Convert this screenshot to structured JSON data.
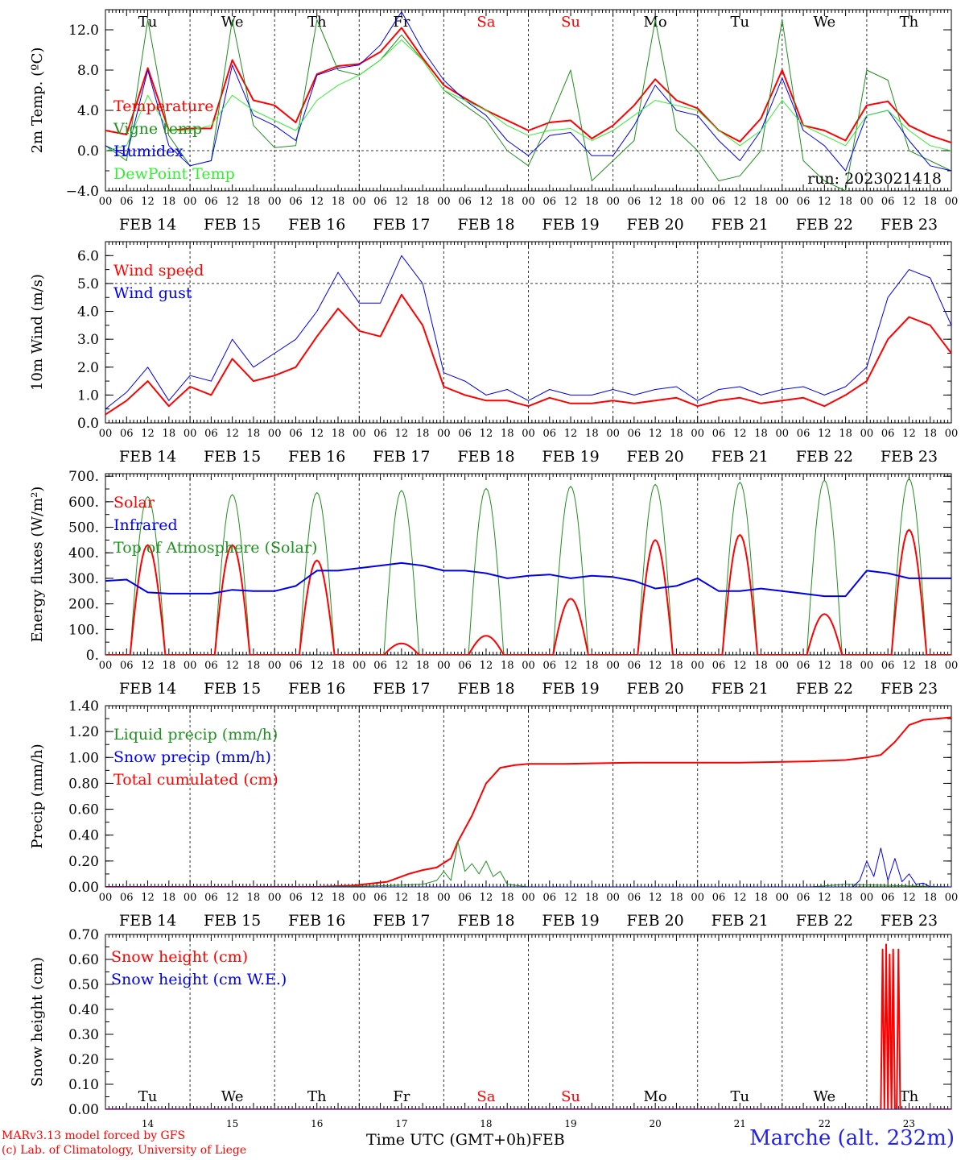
{
  "meta": {
    "run_label": "run: 2023021418",
    "credit_line1": "MARv3.13 model forced by GFS",
    "credit_line2": "(c) Lab. of Climatology, University of Liege",
    "station": "Marche (alt. 232m)",
    "xaxis_title": "Time UTC (GMT+0h)",
    "xaxis_month": "FEB"
  },
  "colors": {
    "red": "#ff0000",
    "green": "#1f8f1f",
    "blue": "#0000ee",
    "lightgreen": "#33ee33",
    "weekend": "#ff0000",
    "weekday": "#000000"
  },
  "days": {
    "weekday_labels": [
      "Tu",
      "We",
      "Th",
      "Fr",
      "Sa",
      "Su",
      "Mo",
      "Tu",
      "We",
      "Th"
    ],
    "weekend_index": [
      4,
      5
    ],
    "date_labels": [
      "FEB 14",
      "FEB 15",
      "FEB 16",
      "FEB 17",
      "FEB 18",
      "FEB 19",
      "FEB 20",
      "FEB 21",
      "FEB 22",
      "FEB 23"
    ],
    "day_numbers": [
      "14",
      "15",
      "16",
      "17",
      "18",
      "19",
      "20",
      "21",
      "22",
      "23"
    ],
    "hour_ticks": [
      "00",
      "06",
      "12",
      "18"
    ],
    "final_hour": "00"
  },
  "chart_data": [
    {
      "type": "line",
      "ylabel": "2m Temp. (ºC)",
      "ylim": [
        -4,
        14
      ],
      "ticks": [
        "−4.0",
        "0.0",
        "4.0",
        "8.0",
        "12.0"
      ],
      "tick_values": [
        -4,
        0,
        4,
        8,
        12
      ],
      "dashed_ref": 0,
      "legend": [
        "Temperature",
        "Vigne temp",
        "Humidex",
        "DewPoint Temp"
      ],
      "legend_colors": [
        "#ff0000",
        "#1f8f1f",
        "#0000ee",
        "#33ee33"
      ],
      "series": [
        {
          "name": "Temperature",
          "color": "#ff0000",
          "width": 2,
          "x": [
            0,
            6,
            12,
            18,
            24,
            30,
            36,
            42,
            48,
            54,
            60,
            66,
            72,
            78,
            84,
            90,
            96,
            102,
            108,
            114,
            120,
            126,
            132,
            138,
            144,
            150,
            156,
            162,
            168,
            174,
            180,
            186,
            192,
            198,
            204,
            210,
            216,
            222,
            228,
            234,
            240
          ],
          "y": [
            2.0,
            1.6,
            8.2,
            2.0,
            2.2,
            2.2,
            9.0,
            5.0,
            4.5,
            2.8,
            7.6,
            8.4,
            8.6,
            9.8,
            12.2,
            9.2,
            6.5,
            5.2,
            4.0,
            3.0,
            2.0,
            2.8,
            3.0,
            1.2,
            2.5,
            4.5,
            7.1,
            5.0,
            4.2,
            2.0,
            0.9,
            3.2,
            8.0,
            2.5,
            2.0,
            1.0,
            4.5,
            4.9,
            2.5,
            1.5,
            0.8
          ]
        },
        {
          "name": "Vigne temp",
          "color": "#1f8f1f",
          "width": 1,
          "x": [
            0,
            6,
            12,
            18,
            24,
            30,
            36,
            42,
            48,
            54,
            60,
            66,
            72,
            78,
            84,
            90,
            96,
            102,
            108,
            114,
            120,
            126,
            132,
            138,
            144,
            150,
            156,
            162,
            168,
            174,
            180,
            186,
            192,
            198,
            204,
            210,
            216,
            222,
            228,
            234,
            240
          ],
          "y": [
            0.5,
            -1.0,
            13.0,
            1.5,
            -1.5,
            -1.0,
            13.0,
            2.5,
            0.3,
            0.5,
            13.0,
            8.0,
            7.5,
            9.0,
            11.5,
            9.0,
            6.0,
            4.5,
            3.0,
            0.0,
            -1.5,
            3.0,
            8.0,
            -3.0,
            -1.0,
            1.0,
            13.0,
            2.0,
            0.0,
            -3.0,
            -2.5,
            0.0,
            13.0,
            -1.0,
            -3.0,
            -4.0,
            8.0,
            7.0,
            0.0,
            -1.0,
            -2.0
          ]
        },
        {
          "name": "Humidex",
          "color": "#0000ee",
          "width": 1,
          "x": [
            0,
            6,
            12,
            18,
            24,
            30,
            36,
            42,
            48,
            54,
            60,
            66,
            72,
            78,
            84,
            90,
            96,
            102,
            108,
            114,
            120,
            126,
            132,
            138,
            144,
            150,
            156,
            162,
            168,
            174,
            180,
            186,
            192,
            198,
            204,
            210,
            216,
            222,
            228,
            234,
            240
          ],
          "y": [
            0.5,
            -0.5,
            8.0,
            0.5,
            -1.5,
            -1.0,
            8.5,
            3.5,
            2.5,
            1.0,
            7.5,
            8.2,
            8.5,
            10.5,
            13.8,
            10.0,
            7.0,
            5.0,
            3.5,
            1.0,
            -0.5,
            1.5,
            1.8,
            -0.5,
            -0.5,
            2.5,
            6.5,
            4.0,
            3.5,
            1.0,
            -1.0,
            2.0,
            7.2,
            2.0,
            0.5,
            -2.0,
            3.5,
            4.0,
            1.0,
            -1.5,
            -2.0
          ]
        },
        {
          "name": "DewPoint Temp",
          "color": "#33ee33",
          "width": 1,
          "x": [
            0,
            6,
            12,
            18,
            24,
            30,
            36,
            42,
            48,
            54,
            60,
            66,
            72,
            78,
            84,
            90,
            96,
            102,
            108,
            114,
            120,
            126,
            132,
            138,
            144,
            150,
            156,
            162,
            168,
            174,
            180,
            186,
            192,
            198,
            204,
            210,
            216,
            222,
            228,
            234,
            240
          ],
          "y": [
            0.0,
            0.5,
            5.5,
            2.0,
            2.0,
            2.5,
            5.5,
            4.0,
            3.0,
            2.0,
            5.0,
            6.5,
            7.5,
            9.0,
            11.0,
            9.0,
            6.0,
            5.0,
            4.0,
            2.5,
            1.5,
            2.0,
            2.2,
            1.0,
            2.0,
            3.5,
            5.0,
            4.5,
            4.0,
            2.0,
            0.5,
            2.0,
            5.0,
            2.5,
            1.5,
            0.5,
            3.5,
            4.0,
            2.0,
            0.5,
            0.0
          ]
        }
      ]
    },
    {
      "type": "line",
      "ylabel": "10m Wind (m/s)",
      "ylim": [
        0,
        6.5
      ],
      "ticks": [
        "0.0",
        "1.0",
        "2.0",
        "3.0",
        "4.0",
        "5.0",
        "6.0"
      ],
      "tick_values": [
        0,
        1,
        2,
        3,
        4,
        5,
        6
      ],
      "dashed_ref": 5,
      "legend": [
        "Wind speed",
        "Wind gust"
      ],
      "legend_colors": [
        "#ff0000",
        "#0000ee"
      ],
      "series": [
        {
          "name": "Wind speed",
          "color": "#ff0000",
          "width": 2,
          "x": [
            0,
            6,
            12,
            18,
            24,
            30,
            36,
            42,
            48,
            54,
            60,
            66,
            72,
            78,
            84,
            90,
            96,
            102,
            108,
            114,
            120,
            126,
            132,
            138,
            144,
            150,
            156,
            162,
            168,
            174,
            180,
            186,
            192,
            198,
            204,
            210,
            216,
            222,
            228,
            234,
            240
          ],
          "y": [
            0.3,
            0.8,
            1.5,
            0.6,
            1.3,
            1.0,
            2.3,
            1.5,
            1.7,
            2.0,
            3.1,
            4.1,
            3.3,
            3.1,
            4.6,
            3.5,
            1.3,
            1.0,
            0.8,
            0.8,
            0.6,
            0.9,
            0.7,
            0.7,
            0.8,
            0.7,
            0.8,
            0.9,
            0.6,
            0.8,
            0.9,
            0.7,
            0.8,
            0.9,
            0.6,
            1.0,
            1.5,
            3.0,
            3.8,
            3.5,
            2.5
          ]
        },
        {
          "name": "Wind gust",
          "color": "#0000ee",
          "width": 1,
          "x": [
            0,
            6,
            12,
            18,
            24,
            30,
            36,
            42,
            48,
            54,
            60,
            66,
            72,
            78,
            84,
            90,
            96,
            102,
            108,
            114,
            120,
            126,
            132,
            138,
            144,
            150,
            156,
            162,
            168,
            174,
            180,
            186,
            192,
            198,
            204,
            210,
            216,
            222,
            228,
            234,
            240
          ],
          "y": [
            0.5,
            1.1,
            2.0,
            0.8,
            1.7,
            1.5,
            3.0,
            2.0,
            2.5,
            3.0,
            4.0,
            5.4,
            4.3,
            4.3,
            6.0,
            5.0,
            1.8,
            1.5,
            1.0,
            1.2,
            0.8,
            1.2,
            1.0,
            1.0,
            1.2,
            1.0,
            1.2,
            1.3,
            0.8,
            1.2,
            1.3,
            1.0,
            1.2,
            1.3,
            1.0,
            1.3,
            2.0,
            4.5,
            5.5,
            5.2,
            3.5
          ]
        }
      ]
    },
    {
      "type": "line",
      "ylabel": "Energy fluxes (W/m²)",
      "ylim": [
        0,
        710
      ],
      "ticks": [
        "0.",
        "100.",
        "200.",
        "300.",
        "400.",
        "500.",
        "600.",
        "700."
      ],
      "tick_values": [
        0,
        100,
        200,
        300,
        400,
        500,
        600,
        700
      ],
      "dashed_ref": null,
      "legend": [
        "Solar",
        "Infrared",
        "Top of Atmosphere (Solar)"
      ],
      "legend_colors": [
        "#ff0000",
        "#0000ee",
        "#1f8f1f"
      ],
      "diurnal": {
        "toa_peaks": [
          620,
          628,
          636,
          644,
          652,
          660,
          668,
          676,
          684,
          690
        ],
        "solar_peaks": [
          430,
          430,
          370,
          45,
          75,
          220,
          450,
          470,
          160,
          490
        ],
        "sunrise_h": 7,
        "sunset_h": 17,
        "solar_color": "#ff0000",
        "toa_color": "#1f8f1f"
      },
      "series": [
        {
          "name": "Infrared",
          "color": "#0000ee",
          "width": 2,
          "x": [
            0,
            6,
            12,
            18,
            24,
            30,
            36,
            42,
            48,
            54,
            60,
            66,
            72,
            78,
            84,
            90,
            96,
            102,
            108,
            114,
            120,
            126,
            132,
            138,
            144,
            150,
            156,
            162,
            168,
            174,
            180,
            186,
            192,
            198,
            204,
            210,
            216,
            222,
            228,
            234,
            240
          ],
          "y": [
            290,
            295,
            245,
            240,
            240,
            240,
            255,
            250,
            250,
            270,
            330,
            330,
            340,
            350,
            360,
            350,
            330,
            330,
            320,
            300,
            310,
            315,
            300,
            310,
            305,
            290,
            260,
            270,
            300,
            250,
            250,
            260,
            250,
            240,
            230,
            230,
            330,
            320,
            300,
            300,
            300
          ]
        }
      ]
    },
    {
      "type": "line",
      "ylabel": "Precip (mm/h)",
      "ylim": [
        0,
        1.4
      ],
      "ticks": [
        "0.00",
        "0.20",
        "0.40",
        "0.60",
        "0.80",
        "1.00",
        "1.20",
        "1.40"
      ],
      "tick_values": [
        0,
        0.2,
        0.4,
        0.6,
        0.8,
        1.0,
        1.2,
        1.4
      ],
      "dashed_ref": null,
      "legend": [
        "Liquid precip (mm/h)",
        "Snow precip (mm/h)",
        "Total cumulated (cm)"
      ],
      "legend_colors": [
        "#1f8f1f",
        "#0000ee",
        "#ff0000"
      ],
      "series": [
        {
          "name": "Total cumulated (cm)",
          "color": "#ff0000",
          "width": 2,
          "x": [
            0,
            60,
            70,
            80,
            86,
            90,
            94,
            98,
            100,
            104,
            108,
            112,
            116,
            120,
            130,
            150,
            180,
            200,
            210,
            216,
            220,
            224,
            228,
            232,
            240
          ],
          "y": [
            0,
            0,
            0.01,
            0.04,
            0.1,
            0.13,
            0.15,
            0.22,
            0.35,
            0.55,
            0.8,
            0.92,
            0.94,
            0.95,
            0.95,
            0.96,
            0.96,
            0.97,
            0.98,
            1.0,
            1.02,
            1.12,
            1.25,
            1.29,
            1.31
          ]
        },
        {
          "name": "Liquid precip (mm/h)",
          "color": "#1f8f1f",
          "width": 1,
          "x": [
            0,
            60,
            80,
            90,
            94,
            96,
            98,
            100,
            102,
            104,
            106,
            108,
            110,
            112,
            114,
            120,
            200,
            210,
            240
          ],
          "y": [
            0,
            0,
            0.01,
            0.02,
            0.05,
            0.12,
            0.05,
            0.35,
            0.12,
            0.18,
            0.1,
            0.2,
            0.08,
            0.12,
            0.02,
            0,
            0,
            0.02,
            0
          ]
        },
        {
          "name": "Snow precip (mm/h)",
          "color": "#0000ee",
          "width": 1,
          "x": [
            0,
            212,
            214,
            216,
            218,
            220,
            222,
            224,
            226,
            228,
            230,
            232,
            234,
            240
          ],
          "y": [
            0,
            0,
            0.05,
            0.2,
            0.08,
            0.3,
            0.05,
            0.22,
            0.04,
            0.1,
            0.02,
            0.03,
            0,
            0
          ]
        }
      ]
    },
    {
      "type": "line",
      "ylabel": "Snow height (cm)",
      "ylim": [
        0,
        0.7
      ],
      "ticks": [
        "0.00",
        "0.10",
        "0.20",
        "0.30",
        "0.40",
        "0.50",
        "0.60",
        "0.70"
      ],
      "tick_values": [
        0,
        0.1,
        0.2,
        0.3,
        0.4,
        0.5,
        0.6,
        0.7
      ],
      "dashed_ref": null,
      "legend": [
        "Snow height (cm)",
        "Snow height (cm W.E.)"
      ],
      "legend_colors": [
        "#ff0000",
        "#0000ee"
      ],
      "series": [
        {
          "name": "Snow height (cm)",
          "color": "#ff0000",
          "width": 2,
          "x": [
            0,
            220,
            220.5,
            221,
            221.5,
            222,
            222.5,
            223,
            223.5,
            224,
            224.5,
            225,
            225.5,
            226,
            226.5,
            227,
            240
          ],
          "y": [
            0,
            0,
            0.64,
            0,
            0.66,
            0,
            0.62,
            0,
            0.64,
            0,
            0,
            0.64,
            0,
            0,
            0,
            0,
            0
          ]
        },
        {
          "name": "Snow height (cm W.E.)",
          "color": "#0000ee",
          "width": 1,
          "x": [
            0,
            240
          ],
          "y": [
            0,
            0
          ]
        }
      ]
    }
  ]
}
